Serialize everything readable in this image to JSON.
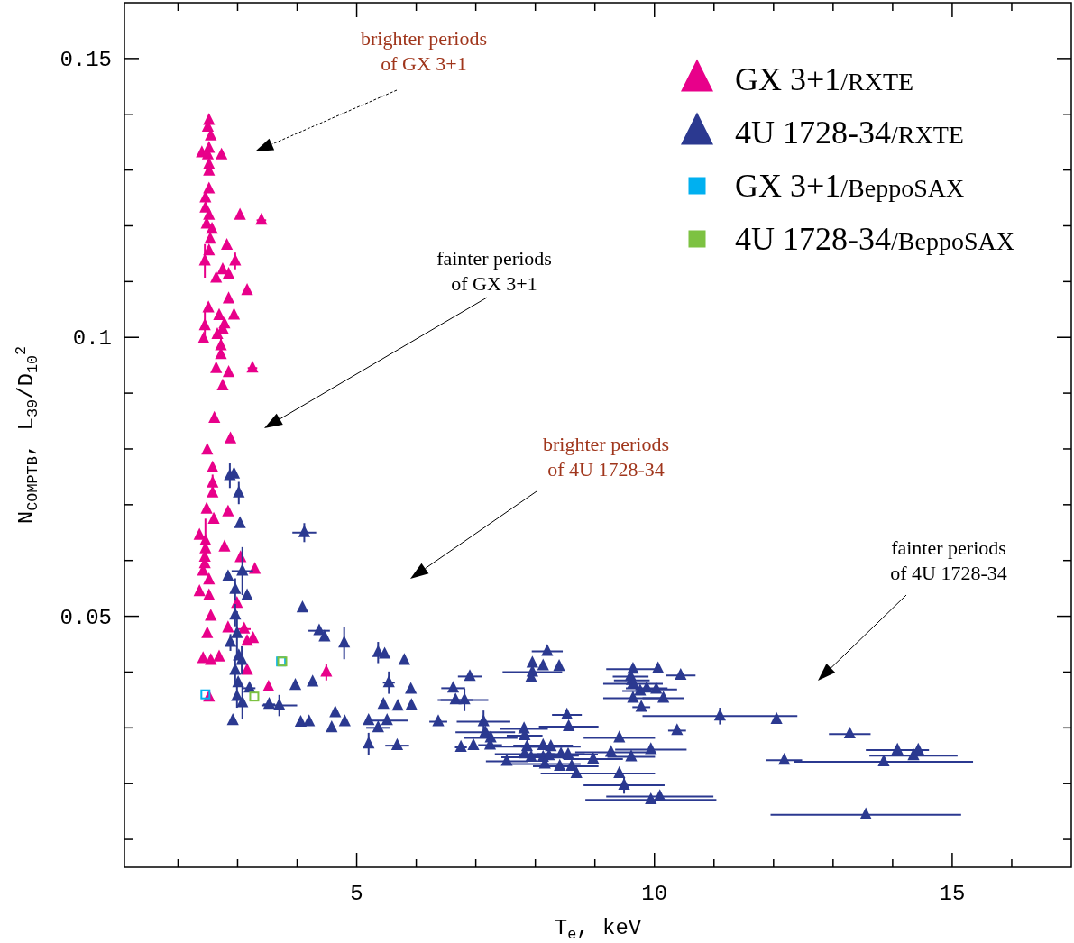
{
  "chart_data": {
    "type": "scatter",
    "xlabel": "T$_{e}$, keV",
    "ylabel": "N$_{COMPTB}$, L$_{39}$/D$_{10}$$^{2}$",
    "xlim": [
      1.1,
      17
    ],
    "ylim": [
      0.005,
      0.16
    ],
    "xticks": [
      {
        "value": 2,
        "label": null
      },
      {
        "value": 3,
        "label": null
      },
      {
        "value": 4,
        "label": null
      },
      5,
      {
        "value": 6,
        "label": null
      },
      {
        "value": 7,
        "label": null
      },
      {
        "value": 8,
        "label": null
      },
      {
        "value": 9,
        "label": null
      },
      10,
      {
        "value": 11,
        "label": null
      },
      {
        "value": 12,
        "label": null
      },
      {
        "value": 13,
        "label": null
      },
      {
        "value": 14,
        "label": null
      },
      15,
      {
        "value": 16,
        "label": null
      }
    ],
    "yticks": [
      {
        "value": 0.01,
        "label": null
      },
      {
        "value": 0.02,
        "label": null
      },
      {
        "value": 0.03,
        "label": null
      },
      {
        "value": 0.04,
        "label": null
      },
      0.05,
      {
        "value": 0.06,
        "label": null
      },
      {
        "value": 0.07,
        "label": null
      },
      {
        "value": 0.08,
        "label": null
      },
      {
        "value": 0.09,
        "label": null
      },
      0.1,
      {
        "value": 0.11,
        "label": null
      },
      {
        "value": 0.12,
        "label": null
      },
      {
        "value": 0.13,
        "label": null
      },
      {
        "value": 0.14,
        "label": null
      },
      0.15
    ],
    "grid": false,
    "legend": "top right",
    "annotations": [
      "brighter periods\nof GX 3+1",
      "fainter periods\nof GX 3+1",
      "brighter periods\nof 4U 1728-34",
      "fainter periods\nof 4U 1728-34"
    ],
    "series": [
      {
        "name": "GX 3+1/RXTE",
        "color": "#e8008a",
        "marker": "triangle",
        "x": [
          2.52,
          2.5,
          2.55,
          2.4,
          2.52,
          2.5,
          2.73,
          2.52,
          2.52,
          2.52,
          2.46,
          2.46,
          2.52,
          3.04,
          3.4,
          2.48,
          2.57,
          2.54,
          2.82,
          2.52,
          2.45,
          2.96,
          2.75,
          2.64,
          2.85,
          3.16,
          2.85,
          2.51,
          2.69,
          2.94,
          2.78,
          2.45,
          2.75,
          2.43,
          2.66,
          2.72,
          2.72,
          2.64,
          2.85,
          3.25,
          2.75,
          2.61,
          2.88,
          2.49,
          2.58,
          2.58,
          2.58,
          2.48,
          2.84,
          2.6,
          2.36,
          2.46,
          2.78,
          2.46,
          2.45,
          3.05,
          2.45,
          3.29,
          2.42,
          2.52,
          2.36,
          2.52,
          2.99,
          2.55,
          2.49,
          2.84,
          3.11,
          3.16,
          3.26,
          2.42,
          2.55,
          2.69,
          3.16,
          3.52,
          2.52,
          4.49
        ],
        "values": [
          0.1389,
          0.1377,
          0.1361,
          0.1331,
          0.1339,
          0.1327,
          0.1327,
          0.131,
          0.1298,
          0.1266,
          0.125,
          0.1232,
          0.1219,
          0.1219,
          0.121,
          0.1203,
          0.1194,
          0.1176,
          0.1165,
          0.1155,
          0.1137,
          0.1137,
          0.1121,
          0.1106,
          0.1113,
          0.1084,
          0.1069,
          0.1053,
          0.1039,
          0.104,
          0.1024,
          0.1021,
          0.1015,
          0.0997,
          0.1005,
          0.0985,
          0.0969,
          0.0944,
          0.0937,
          0.0945,
          0.0913,
          0.0855,
          0.0818,
          0.0798,
          0.0766,
          0.0739,
          0.0721,
          0.0692,
          0.0687,
          0.0674,
          0.0645,
          0.0635,
          0.0624,
          0.0621,
          0.0606,
          0.0605,
          0.0594,
          0.0584,
          0.0581,
          0.0565,
          0.0544,
          0.0537,
          0.0523,
          0.05,
          0.0469,
          0.0479,
          0.0477,
          0.0455,
          0.046,
          0.0424,
          0.0421,
          0.0427,
          0.0403,
          0.0373,
          0.0355,
          0.04
        ],
        "errors": [
          null,
          null,
          null,
          null,
          null,
          null,
          null,
          null,
          null,
          null,
          null,
          null,
          null,
          null,
          null,
          null,
          null,
          null,
          null,
          null,
          0.003,
          0.0015,
          null,
          null,
          null,
          null,
          null,
          null,
          null,
          null,
          null,
          0.0025,
          null,
          null,
          null,
          0.0015,
          null,
          null,
          null,
          null,
          null,
          null,
          null,
          null,
          null,
          0.0015,
          null,
          null,
          null,
          null,
          null,
          0.004,
          null,
          null,
          null,
          null,
          null,
          null,
          null,
          null,
          null,
          null,
          null,
          null,
          null,
          null,
          null,
          null,
          null,
          null,
          null,
          null,
          null,
          null,
          null,
          0.0015
        ],
        "xerrors": [
          null,
          null,
          null,
          null,
          null,
          null,
          null,
          null,
          null,
          null,
          null,
          null,
          null,
          null,
          0.08,
          null,
          null,
          null,
          null,
          null,
          null,
          null,
          null,
          null,
          null,
          null,
          null,
          null,
          null,
          null,
          null,
          null,
          null,
          null,
          null,
          null,
          null,
          null,
          null,
          0.08,
          null,
          null,
          null,
          null,
          null,
          null,
          null,
          null,
          null,
          null,
          null,
          null,
          null,
          null,
          null,
          null,
          null,
          null,
          null,
          null,
          null,
          null,
          null,
          null,
          null,
          null,
          0.11,
          null,
          null,
          null,
          null,
          null,
          null,
          null,
          null,
          null
        ]
      },
      {
        "name": "4U 1728-34/RXTE",
        "color": "#2b3990",
        "marker": "triangle",
        "x": [
          2.87,
          2.94,
          3.02,
          3.04,
          2.84,
          3.08,
          3.16,
          2.96,
          2.96,
          2.99,
          2.88,
          3.02,
          3.07,
          2.96,
          3.01,
          3.2,
          2.99,
          3.08,
          3.53,
          2.92,
          4.12,
          4.09,
          4.37,
          4.46,
          4.79,
          5.36,
          5.47,
          5.8,
          5.54,
          5.91,
          3.97,
          4.26,
          3.7,
          4.06,
          4.2,
          4.64,
          4.8,
          4.58,
          5.45,
          5.69,
          5.92,
          5.2,
          5.36,
          5.51,
          6.37,
          5.2,
          5.68,
          8.2,
          7.95,
          8.13,
          8.4,
          7.95,
          7.93,
          6.9,
          6.62,
          6.66,
          6.81,
          7.13,
          8.53,
          8.56,
          7.81,
          7.82,
          7.16,
          7.25,
          7.24,
          6.96,
          6.75,
          7.52,
          7.86,
          8.13,
          8.26,
          7.82,
          7.93,
          8.13,
          8.23,
          8.43,
          8.55,
          8.16,
          8.41,
          8.61,
          8.69,
          8.97,
          9.41,
          9.49,
          9.27,
          9.61,
          9.94,
          10.38,
          9.41,
          9.94,
          10.09,
          9.64,
          10.06,
          10.44,
          9.6,
          9.62,
          9.64,
          9.76,
          9.87,
          10.03,
          9.64,
          10.15,
          9.78,
          11.1,
          12.05,
          13.28,
          14.08,
          14.43,
          14.35,
          13.85,
          12.18,
          13.55
        ],
        "values": [
          0.0752,
          0.0755,
          0.0721,
          0.0666,
          0.0571,
          0.0581,
          0.0537,
          0.0548,
          0.0502,
          0.0469,
          0.0453,
          0.0429,
          0.0421,
          0.0403,
          0.0381,
          0.0371,
          0.0356,
          0.0345,
          0.0342,
          0.0313,
          0.065,
          0.0515,
          0.0474,
          0.0463,
          0.0452,
          0.0435,
          0.0432,
          0.0421,
          0.0381,
          0.0369,
          0.0376,
          0.0382,
          0.034,
          0.031,
          0.0311,
          0.0327,
          0.0311,
          0.03,
          0.0342,
          0.0339,
          0.034,
          0.0313,
          0.03,
          0.0313,
          0.0311,
          0.0271,
          0.0268,
          0.0437,
          0.0416,
          0.0411,
          0.041,
          0.04,
          0.039,
          0.0392,
          0.0371,
          0.035,
          0.035,
          0.0311,
          0.0323,
          0.0302,
          0.0298,
          0.0286,
          0.0292,
          0.0282,
          0.0269,
          0.0268,
          0.0265,
          0.024,
          0.0266,
          0.0268,
          0.0266,
          0.0253,
          0.0247,
          0.0247,
          0.025,
          0.0253,
          0.0252,
          0.0235,
          0.0231,
          0.0231,
          0.0218,
          0.0244,
          0.0218,
          0.0197,
          0.0256,
          0.0248,
          0.0261,
          0.0295,
          0.0282,
          0.0171,
          0.0177,
          0.0405,
          0.0406,
          0.0394,
          0.0392,
          0.0385,
          0.0379,
          0.0366,
          0.0371,
          0.0369,
          0.0353,
          0.0353,
          0.0337,
          0.0321,
          0.0315,
          0.0289,
          0.026,
          0.026,
          0.025,
          0.0239,
          0.0242,
          0.0144
        ],
        "errors": [
          0.0022,
          null,
          0.002,
          null,
          null,
          0.0043,
          null,
          0.002,
          0.002,
          0.004,
          0.0015,
          null,
          0.0025,
          0.002,
          null,
          null,
          0.002,
          0.003,
          null,
          null,
          0.0017,
          null,
          null,
          null,
          0.0029,
          0.0019,
          null,
          null,
          0.002,
          null,
          null,
          null,
          0.0019,
          null,
          null,
          null,
          null,
          null,
          null,
          null,
          null,
          null,
          null,
          null,
          null,
          0.002,
          null,
          null,
          null,
          null,
          null,
          null,
          null,
          null,
          null,
          null,
          0.002,
          0.002,
          null,
          null,
          null,
          null,
          null,
          null,
          null,
          null,
          null,
          null,
          null,
          null,
          null,
          null,
          null,
          null,
          null,
          null,
          null,
          null,
          null,
          null,
          null,
          null,
          null,
          0.0015,
          null,
          null,
          null,
          null,
          null,
          null,
          null,
          null,
          null,
          null,
          null,
          null,
          null,
          null,
          null,
          null,
          null,
          null,
          null,
          0.0015,
          null,
          null,
          null,
          null,
          null,
          null,
          null,
          null
        ],
        "xerrors": [
          null,
          null,
          null,
          null,
          null,
          0.18,
          null,
          null,
          null,
          null,
          null,
          null,
          null,
          null,
          null,
          0.1,
          null,
          null,
          0.1,
          null,
          0.2,
          null,
          0.18,
          null,
          null,
          null,
          null,
          null,
          0.1,
          null,
          null,
          null,
          0.3,
          null,
          null,
          null,
          null,
          null,
          null,
          null,
          null,
          null,
          0.2,
          0.35,
          0.15,
          null,
          0.2,
          0.26,
          null,
          null,
          null,
          0.5,
          null,
          0.2,
          0.2,
          0.3,
          0.4,
          0.45,
          0.25,
          0.5,
          0.4,
          0.3,
          0.5,
          0.45,
          0.2,
          null,
          0.1,
          0.35,
          0.6,
          0.5,
          0.5,
          0.5,
          0.5,
          0.5,
          0.5,
          0.4,
          0.5,
          0.6,
          0.45,
          0.45,
          0.6,
          0.5,
          0.6,
          0.68,
          0.6,
          0.4,
          0.6,
          0.15,
          0.6,
          1.1,
          0.9,
          0.45,
          null,
          0.25,
          0.3,
          0.3,
          0.5,
          0.3,
          0.35,
          0.35,
          0.5,
          0.35,
          0.15,
          1.3,
          null,
          0.35,
          0.53,
          null,
          0.74,
          1.5,
          0.3,
          1.6
        ]
      },
      {
        "name": "GX 3+1/BeppoSAX",
        "color": "#00b0f0",
        "marker": "square",
        "x": [
          2.46,
          3.73
        ],
        "values": [
          0.036,
          0.0419
        ]
      },
      {
        "name": "4U 1728-34/BeppoSAX",
        "color": "#7dc242",
        "marker": "square",
        "x": [
          3.28,
          3.75
        ],
        "values": [
          0.0356,
          0.0419
        ]
      }
    ]
  }
}
